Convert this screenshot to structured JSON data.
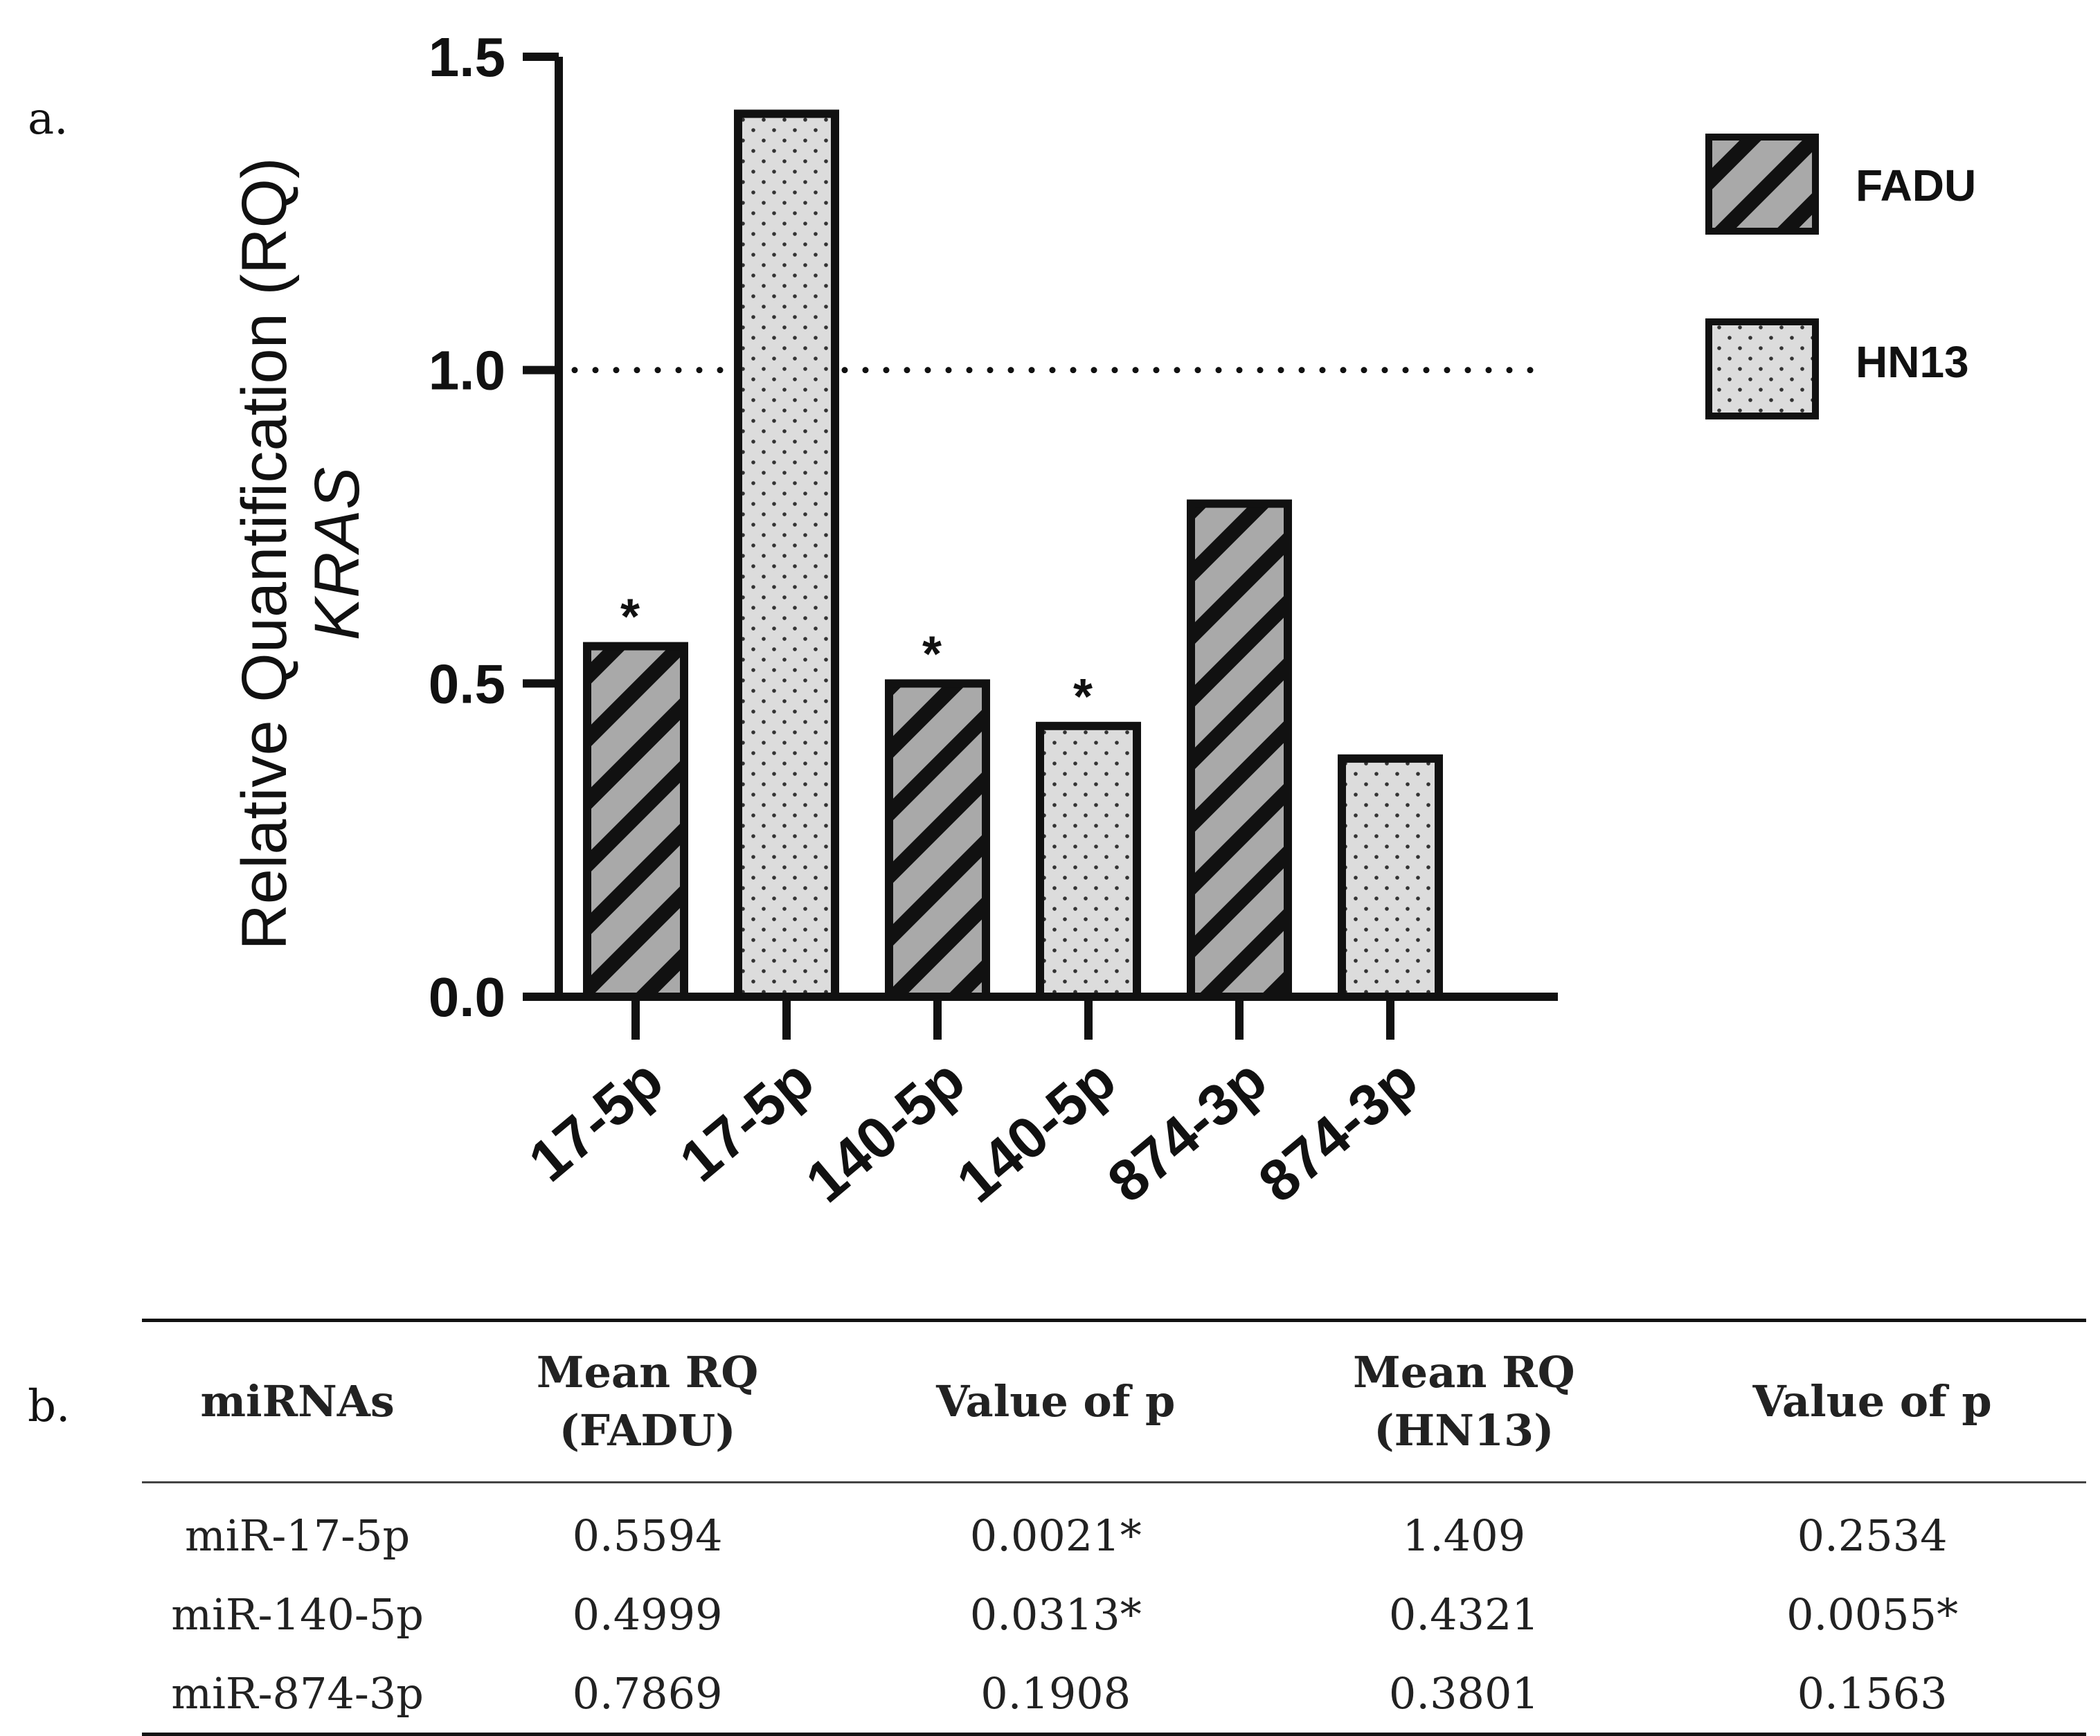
{
  "panel_labels": {
    "a": "a.",
    "b": "b."
  },
  "chart_data": {
    "type": "bar",
    "ylabel_line1": "Relative Quantification (RQ)",
    "ylabel_line2": "KRAS",
    "xlabel": "",
    "ylim": [
      0,
      1.5
    ],
    "yticks": [
      0.0,
      0.5,
      1.0,
      1.5
    ],
    "ytick_labels": [
      "0.0",
      "0.5",
      "1.0",
      "1.5"
    ],
    "reference_line": 1.0,
    "categories": [
      "17-5p",
      "17-5p",
      "140-5p",
      "140-5p",
      "874-3p",
      "874-3p"
    ],
    "bars": [
      {
        "category": "17-5p",
        "series": "FADU",
        "value": 0.5594,
        "significant": true
      },
      {
        "category": "17-5p",
        "series": "HN13",
        "value": 1.409,
        "significant": false
      },
      {
        "category": "140-5p",
        "series": "FADU",
        "value": 0.4999,
        "significant": true
      },
      {
        "category": "140-5p",
        "series": "HN13",
        "value": 0.4321,
        "significant": true
      },
      {
        "category": "874-3p",
        "series": "FADU",
        "value": 0.7869,
        "significant": false
      },
      {
        "category": "874-3p",
        "series": "HN13",
        "value": 0.3801,
        "significant": false
      }
    ],
    "significance_marker": "*",
    "legend": [
      {
        "name": "FADU",
        "pattern": "diagonal-hatch"
      },
      {
        "name": "HN13",
        "pattern": "dots"
      }
    ],
    "legend_position": "top-right",
    "colors": {
      "fadu_fill": "#a9a9a9",
      "hn13_fill": "#dcdcdc",
      "stroke": "#111111"
    }
  },
  "table": {
    "headers": [
      {
        "line1": "miRNAs",
        "line2": ""
      },
      {
        "line1": "Mean RQ",
        "line2": "(FADU)"
      },
      {
        "line1": "Value of p",
        "line2": ""
      },
      {
        "line1": "Mean RQ",
        "line2": "(HN13)"
      },
      {
        "line1": "Value of p",
        "line2": ""
      }
    ],
    "rows": [
      [
        "miR-17-5p",
        "0.5594",
        "0.0021*",
        "1.409",
        "0.2534"
      ],
      [
        "miR-140-5p",
        "0.4999",
        "0.0313*",
        "0.4321",
        "0.0055*"
      ],
      [
        "miR-874-3p",
        "0.7869",
        "0.1908",
        "0.3801",
        "0.1563"
      ]
    ]
  }
}
